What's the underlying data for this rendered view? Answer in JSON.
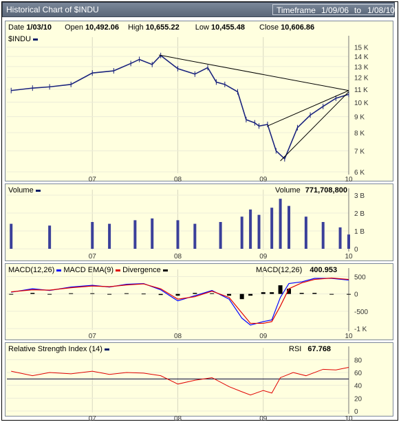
{
  "title": "Historical Chart of $INDU",
  "timeframe": {
    "label": "Timeframe",
    "from": "1/09/06",
    "to_word": "to",
    "to": "1/08/10"
  },
  "quote": {
    "date_label": "Date",
    "date": "1/03/10",
    "open_label": "Open",
    "open": "10,492.06",
    "high_label": "High",
    "high": "10,655.22",
    "low_label": "Low",
    "low": "10,455.48",
    "close_label": "Close",
    "close": "10,606.86"
  },
  "price_panel": {
    "symbol": "$INDU"
  },
  "volume_panel": {
    "label": "Volume",
    "value_label": "Volume",
    "value": "771,708,800"
  },
  "macd_panel": {
    "macd_label": "MACD(12,26)",
    "ema_label": "MACD EMA(9)",
    "div_label": "Divergence",
    "value_label": "MACD(12,26)",
    "value": "400.953"
  },
  "rsi_panel": {
    "label": "Relative Strength Index (14)",
    "value_label": "RSI",
    "value": "67.768"
  },
  "colors": {
    "price": "#1a237e",
    "volume": "#3a3f9a",
    "macd": "#0000ff",
    "ema": "#e00000",
    "divergence": "#000000",
    "rsi": "#e00000",
    "panel_bg": "#ffffdf"
  },
  "chart_data": [
    {
      "type": "line",
      "name": "price",
      "x_ticks": [
        "07",
        "08",
        "09",
        "10"
      ],
      "y_ticks": [
        "6 K",
        "7 K",
        "8 K",
        "9 K",
        "10 K",
        "11 K",
        "12 K",
        "13 K",
        "14 K",
        "15 K"
      ],
      "ylim": [
        6000,
        15500
      ],
      "scale": "log",
      "x": [
        2006.05,
        2006.3,
        2006.5,
        2006.75,
        2007.0,
        2007.25,
        2007.45,
        2007.55,
        2007.7,
        2007.8,
        2008.0,
        2008.2,
        2008.35,
        2008.45,
        2008.55,
        2008.7,
        2008.8,
        2008.9,
        2008.95,
        2009.05,
        2009.15,
        2009.25,
        2009.4,
        2009.55,
        2009.7,
        2009.85,
        2010.0
      ],
      "y": [
        10900,
        11100,
        11200,
        11400,
        12400,
        12600,
        13300,
        13700,
        13200,
        14100,
        12800,
        12300,
        12900,
        11600,
        11400,
        10800,
        8800,
        8600,
        8400,
        8500,
        7000,
        6600,
        8300,
        9100,
        9700,
        10300,
        10600
      ],
      "trendlines": [
        {
          "from": [
            2007.78,
            14150
          ],
          "to": [
            2010.0,
            10900
          ]
        },
        {
          "from": [
            2009.05,
            8400
          ],
          "to": [
            2010.0,
            10900
          ]
        },
        {
          "from": [
            2009.2,
            6500
          ],
          "to": [
            2010.0,
            10800
          ]
        }
      ]
    },
    {
      "type": "bar",
      "name": "volume",
      "y_ticks": [
        "0",
        "1 B",
        "2 B",
        "3 B"
      ],
      "ylim": [
        0,
        3.0
      ],
      "x": [
        2006.05,
        2006.5,
        2007.0,
        2007.2,
        2007.5,
        2007.7,
        2008.0,
        2008.2,
        2008.5,
        2008.75,
        2008.85,
        2008.95,
        2009.1,
        2009.2,
        2009.3,
        2009.5,
        2009.7,
        2009.9,
        2010.0
      ],
      "y": [
        1.4,
        1.3,
        1.5,
        1.4,
        1.6,
        1.7,
        1.6,
        1.4,
        1.5,
        1.8,
        2.2,
        1.9,
        2.3,
        2.8,
        2.4,
        1.8,
        1.5,
        1.2,
        0.8
      ]
    },
    {
      "type": "line",
      "name": "macd",
      "y_ticks": [
        "-1 K",
        "-500",
        "0",
        "500"
      ],
      "ylim": [
        -1000,
        550
      ],
      "x": [
        2006.05,
        2006.3,
        2006.5,
        2006.75,
        2007.0,
        2007.2,
        2007.4,
        2007.6,
        2007.8,
        2008.0,
        2008.2,
        2008.4,
        2008.6,
        2008.75,
        2008.85,
        2009.0,
        2009.1,
        2009.2,
        2009.3,
        2009.45,
        2009.6,
        2009.8,
        2010.0
      ],
      "macd": [
        50,
        150,
        100,
        200,
        250,
        200,
        280,
        300,
        120,
        -200,
        -50,
        100,
        -150,
        -700,
        -900,
        -800,
        -750,
        -100,
        300,
        350,
        450,
        450,
        400
      ],
      "ema": [
        60,
        120,
        110,
        180,
        230,
        210,
        260,
        290,
        150,
        -150,
        -80,
        80,
        -100,
        -550,
        -850,
        -850,
        -800,
        -350,
        150,
        320,
        420,
        460,
        420
      ]
    },
    {
      "type": "line",
      "name": "rsi",
      "y_ticks": [
        "0",
        "20",
        "40",
        "60",
        "80"
      ],
      "ylim": [
        0,
        90
      ],
      "reference": 50,
      "x": [
        2006.05,
        2006.3,
        2006.5,
        2006.75,
        2007.0,
        2007.2,
        2007.4,
        2007.6,
        2007.8,
        2008.0,
        2008.2,
        2008.4,
        2008.6,
        2008.75,
        2008.85,
        2009.0,
        2009.1,
        2009.2,
        2009.35,
        2009.5,
        2009.7,
        2009.85,
        2010.0
      ],
      "y": [
        62,
        55,
        60,
        58,
        62,
        57,
        60,
        59,
        55,
        42,
        48,
        52,
        38,
        30,
        25,
        32,
        28,
        52,
        60,
        55,
        65,
        64,
        68
      ]
    }
  ]
}
